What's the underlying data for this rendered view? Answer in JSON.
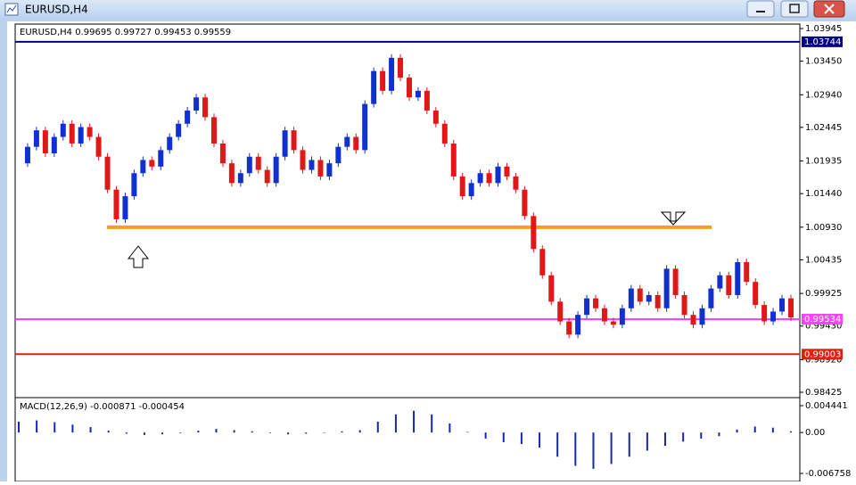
{
  "window": {
    "title": "EURUSD,H4"
  },
  "chart_data": [
    {
      "type": "candlestick",
      "title": "EURUSD,H4  0.99695 0.99727 0.99453 0.99559",
      "closes": [
        1.019,
        1.0215,
        1.024,
        1.0205,
        1.023,
        1.025,
        1.022,
        1.0245,
        1.023,
        1.02,
        1.015,
        1.0105,
        1.014,
        1.0175,
        1.0195,
        1.0185,
        1.021,
        1.023,
        1.025,
        1.027,
        1.029,
        1.026,
        1.022,
        1.019,
        1.016,
        1.0175,
        1.02,
        1.018,
        1.016,
        1.02,
        1.024,
        1.021,
        1.018,
        1.0195,
        1.017,
        1.019,
        1.0215,
        1.023,
        1.021,
        1.028,
        1.033,
        1.03,
        1.035,
        1.032,
        1.029,
        1.03,
        1.027,
        1.025,
        1.022,
        1.017,
        1.014,
        1.016,
        1.0175,
        1.016,
        1.0185,
        1.017,
        1.015,
        1.011,
        1.006,
        1.002,
        0.998,
        0.995,
        0.993,
        0.996,
        0.9985,
        0.997,
        0.995,
        0.9945,
        0.997,
        1.0,
        0.998,
        0.999,
        0.997,
        1.003,
        0.999,
        0.996,
        0.9945,
        0.997,
        1.0,
        1.002,
        0.999,
        1.004,
        1.001,
        0.9975,
        0.995,
        0.9965,
        0.9985,
        0.9956
      ],
      "up_color": "#1030d0",
      "down_color": "#e01818",
      "ylim": [
        0.98425,
        1.03945
      ],
      "yticks": [
        {
          "value": 1.03945,
          "label": "1.03945"
        },
        {
          "value": 1.0345,
          "label": "1.03450"
        },
        {
          "value": 1.0294,
          "label": "1.02940"
        },
        {
          "value": 1.02445,
          "label": "1.02445"
        },
        {
          "value": 1.01935,
          "label": "1.01935"
        },
        {
          "value": 1.0144,
          "label": "1.01440"
        },
        {
          "value": 1.0093,
          "label": "1.00930"
        },
        {
          "value": 1.00435,
          "label": "1.00435"
        },
        {
          "value": 0.99925,
          "label": "0.99925"
        },
        {
          "value": 0.9943,
          "label": "0.99430"
        },
        {
          "value": 0.9892,
          "label": "0.98920"
        },
        {
          "value": 0.98425,
          "label": "0.98425"
        }
      ],
      "levels": [
        {
          "value": 1.03744,
          "label": "1.03744",
          "color": "#000080"
        },
        {
          "value": 0.99534,
          "label": "0.99534",
          "color": "#ff40ff"
        },
        {
          "value": 0.99003,
          "label": "0.99003",
          "color": "#e02010"
        }
      ],
      "support": {
        "value": 1.0093,
        "color": "#f7a020"
      }
    },
    {
      "type": "histogram",
      "title": "MACD(12,26,9) -0.000871 -0.000454",
      "values": [
        0.0018,
        0.002,
        0.0017,
        0.0013,
        0.0009,
        0.0003,
        -0.0002,
        -0.0004,
        -0.0003,
        -0.0001,
        0.0003,
        0.0006,
        0.0004,
        0.0002,
        -0.0001,
        -0.0003,
        -0.0002,
        0.0,
        0.0002,
        0.0004,
        0.0018,
        0.003,
        0.0036,
        0.003,
        0.0015,
        0.0001,
        -0.001,
        -0.0016,
        -0.0019,
        -0.0025,
        -0.004,
        -0.0055,
        -0.006,
        -0.0052,
        -0.004,
        -0.003,
        -0.0022,
        -0.0015,
        -0.001,
        -0.0006,
        0.0005,
        0.001,
        0.0008,
        0.0002
      ],
      "color": "#1828b0",
      "ylim": [
        -0.006758,
        0.004441
      ],
      "yticks": [
        {
          "value": 0.004441,
          "label": "0.004441"
        },
        {
          "value": 0,
          "label": "0.00"
        },
        {
          "value": -0.006758,
          "label": "-0.006758"
        }
      ]
    }
  ]
}
